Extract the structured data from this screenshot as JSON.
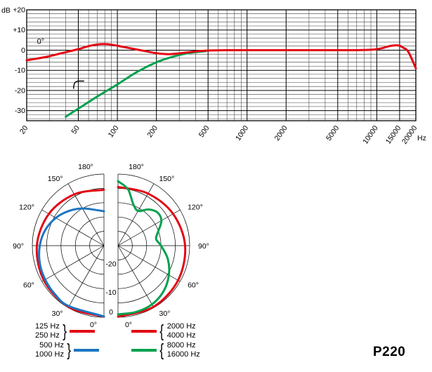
{
  "model_label": "P220",
  "colors": {
    "red": "#e30613",
    "green": "#00a14e",
    "blue": "#1d76c2",
    "axis": "#000000",
    "grid_minor": "#3c3c3c"
  },
  "chart_data": [
    {
      "id": "frequency_response",
      "type": "line",
      "title": "",
      "xlabel": "Hz",
      "ylabel": "dB",
      "xscale": "log",
      "xlim": [
        20,
        20000
      ],
      "ylim": [
        -35,
        20
      ],
      "yticks": [
        {
          "value": 20,
          "label": "+20"
        },
        {
          "value": 10,
          "label": "+10"
        },
        {
          "value": 0,
          "label": "0"
        },
        {
          "value": -10,
          "label": "-10"
        },
        {
          "value": -20,
          "label": "-20"
        },
        {
          "value": -30,
          "label": "-30"
        }
      ],
      "xticks": [
        {
          "value": 20,
          "label": "20"
        },
        {
          "value": 50,
          "label": "50"
        },
        {
          "value": 100,
          "label": "100"
        },
        {
          "value": 200,
          "label": "200"
        },
        {
          "value": 500,
          "label": "500"
        },
        {
          "value": 1000,
          "label": "1000"
        },
        {
          "value": 2000,
          "label": "2000"
        },
        {
          "value": 5000,
          "label": "5000"
        },
        {
          "value": 10000,
          "label": "10000"
        },
        {
          "value": 15000,
          "label": "15000"
        },
        {
          "value": 20000,
          "label": "20000"
        }
      ],
      "minor_xticks": [
        30,
        40,
        60,
        70,
        80,
        90,
        300,
        400,
        600,
        700,
        800,
        900,
        3000,
        4000,
        6000,
        7000,
        8000,
        9000
      ],
      "minor_ytick_step": 2,
      "annotations": [
        {
          "text": "0°",
          "freq": 24,
          "db": 3.2
        },
        {
          "icon": "bass-cut-filter-icon",
          "freq": 46,
          "db": -15
        }
      ],
      "series": [
        {
          "name": "frontal-response-0deg",
          "color_key": "red",
          "points": [
            [
              20,
              -5
            ],
            [
              25,
              -4
            ],
            [
              30,
              -3
            ],
            [
              40,
              -1
            ],
            [
              50,
              0.5
            ],
            [
              60,
              2
            ],
            [
              70,
              2.8
            ],
            [
              80,
              3
            ],
            [
              90,
              2.7
            ],
            [
              100,
              2.2
            ],
            [
              120,
              1.2
            ],
            [
              150,
              0
            ],
            [
              200,
              -1.5
            ],
            [
              250,
              -2
            ],
            [
              300,
              -1.6
            ],
            [
              400,
              -0.6
            ],
            [
              500,
              -0.2
            ],
            [
              700,
              0
            ],
            [
              1000,
              0
            ],
            [
              1500,
              0
            ],
            [
              2000,
              0
            ],
            [
              3000,
              0
            ],
            [
              5000,
              0
            ],
            [
              7000,
              0
            ],
            [
              9000,
              0.2
            ],
            [
              10000,
              0.5
            ],
            [
              11000,
              1
            ],
            [
              12500,
              2
            ],
            [
              14000,
              2.4
            ],
            [
              15000,
              2.2
            ],
            [
              16000,
              1.2
            ],
            [
              17500,
              -0.8
            ],
            [
              20000,
              -9
            ]
          ]
        },
        {
          "name": "bass-cut-filter-response",
          "color_key": "green",
          "points": [
            [
              40,
              -33
            ],
            [
              50,
              -29
            ],
            [
              70,
              -23
            ],
            [
              100,
              -17
            ],
            [
              140,
              -11
            ],
            [
              200,
              -6
            ],
            [
              260,
              -3.5
            ],
            [
              320,
              -2
            ],
            [
              400,
              -1
            ],
            [
              480,
              -0.5
            ]
          ]
        }
      ]
    },
    {
      "id": "polar_pattern",
      "type": "polar",
      "rings_db": [
        0,
        -5,
        -10,
        -15,
        -20
      ],
      "center_db": -25,
      "ring_labels": [
        {
          "db": -20,
          "label": "-20"
        },
        {
          "db": -10,
          "label": "-10"
        },
        {
          "db": 0,
          "label": "0"
        }
      ],
      "angle_step_deg": 30,
      "angle_labels": [
        {
          "deg": 180,
          "label": "180°"
        },
        {
          "deg": 150,
          "label": "150°"
        },
        {
          "deg": 120,
          "label": "120°"
        },
        {
          "deg": 90,
          "label": "90°"
        },
        {
          "deg": 60,
          "label": "60°"
        },
        {
          "deg": 30,
          "label": "30°"
        },
        {
          "deg": 0,
          "label": "0°"
        }
      ],
      "halves": {
        "left": {
          "series": [
            {
              "name": "125-250hz",
              "color_key": "red",
              "points": [
                [
                  0,
                  -0.2
                ],
                [
                  30,
                  -0.3
                ],
                [
                  60,
                  -0.8
                ],
                [
                  90,
                  -1.6
                ],
                [
                  120,
                  -2.8
                ],
                [
                  150,
                  -4.3
                ],
                [
                  180,
                  -5.5
                ]
              ]
            },
            {
              "name": "500-1000hz",
              "color_key": "blue",
              "points": [
                [
                  0,
                  -0.3
                ],
                [
                  30,
                  -0.6
                ],
                [
                  45,
                  -0.9
                ],
                [
                  60,
                  -1.3
                ],
                [
                  75,
                  -1.8
                ],
                [
                  90,
                  -2.6
                ],
                [
                  105,
                  -3.8
                ],
                [
                  120,
                  -5.6
                ],
                [
                  135,
                  -7.8
                ],
                [
                  150,
                  -10
                ],
                [
                  165,
                  -12
                ],
                [
                  180,
                  -13
                ]
              ]
            }
          ]
        },
        "right": {
          "series": [
            {
              "name": "2000-4000hz",
              "color_key": "red",
              "points": [
                [
                  0,
                  -0.2
                ],
                [
                  30,
                  -0.3
                ],
                [
                  60,
                  -0.8
                ],
                [
                  90,
                  -1.6
                ],
                [
                  120,
                  -2.8
                ],
                [
                  150,
                  -4
                ],
                [
                  180,
                  -4.5
                ]
              ]
            },
            {
              "name": "8000-16000hz",
              "color_key": "green",
              "points": [
                [
                  0,
                  -1
                ],
                [
                  15,
                  -1
                ],
                [
                  30,
                  -1.3
                ],
                [
                  45,
                  -2.5
                ],
                [
                  60,
                  -4.5
                ],
                [
                  75,
                  -7
                ],
                [
                  90,
                  -10
                ],
                [
                  100,
                  -11.5
                ],
                [
                  110,
                  -10
                ],
                [
                  120,
                  -7.5
                ],
                [
                  130,
                  -7
                ],
                [
                  140,
                  -8.5
                ],
                [
                  150,
                  -11
                ],
                [
                  160,
                  -9.5
                ],
                [
                  170,
                  -5
                ],
                [
                  180,
                  -2.5
                ]
              ]
            }
          ]
        }
      }
    }
  ],
  "legend": {
    "brace_close": "}",
    "brace_open": "{",
    "left_groups": [
      {
        "labels": [
          "125 Hz",
          "250 Hz"
        ],
        "color_key": "red"
      },
      {
        "labels": [
          "500 Hz",
          "1000 Hz"
        ],
        "color_key": "blue"
      }
    ],
    "right_groups": [
      {
        "labels": [
          "2000 Hz",
          "4000 Hz"
        ],
        "color_key": "red"
      },
      {
        "labels": [
          "8000 Hz",
          "16000 Hz"
        ],
        "color_key": "green"
      }
    ]
  }
}
